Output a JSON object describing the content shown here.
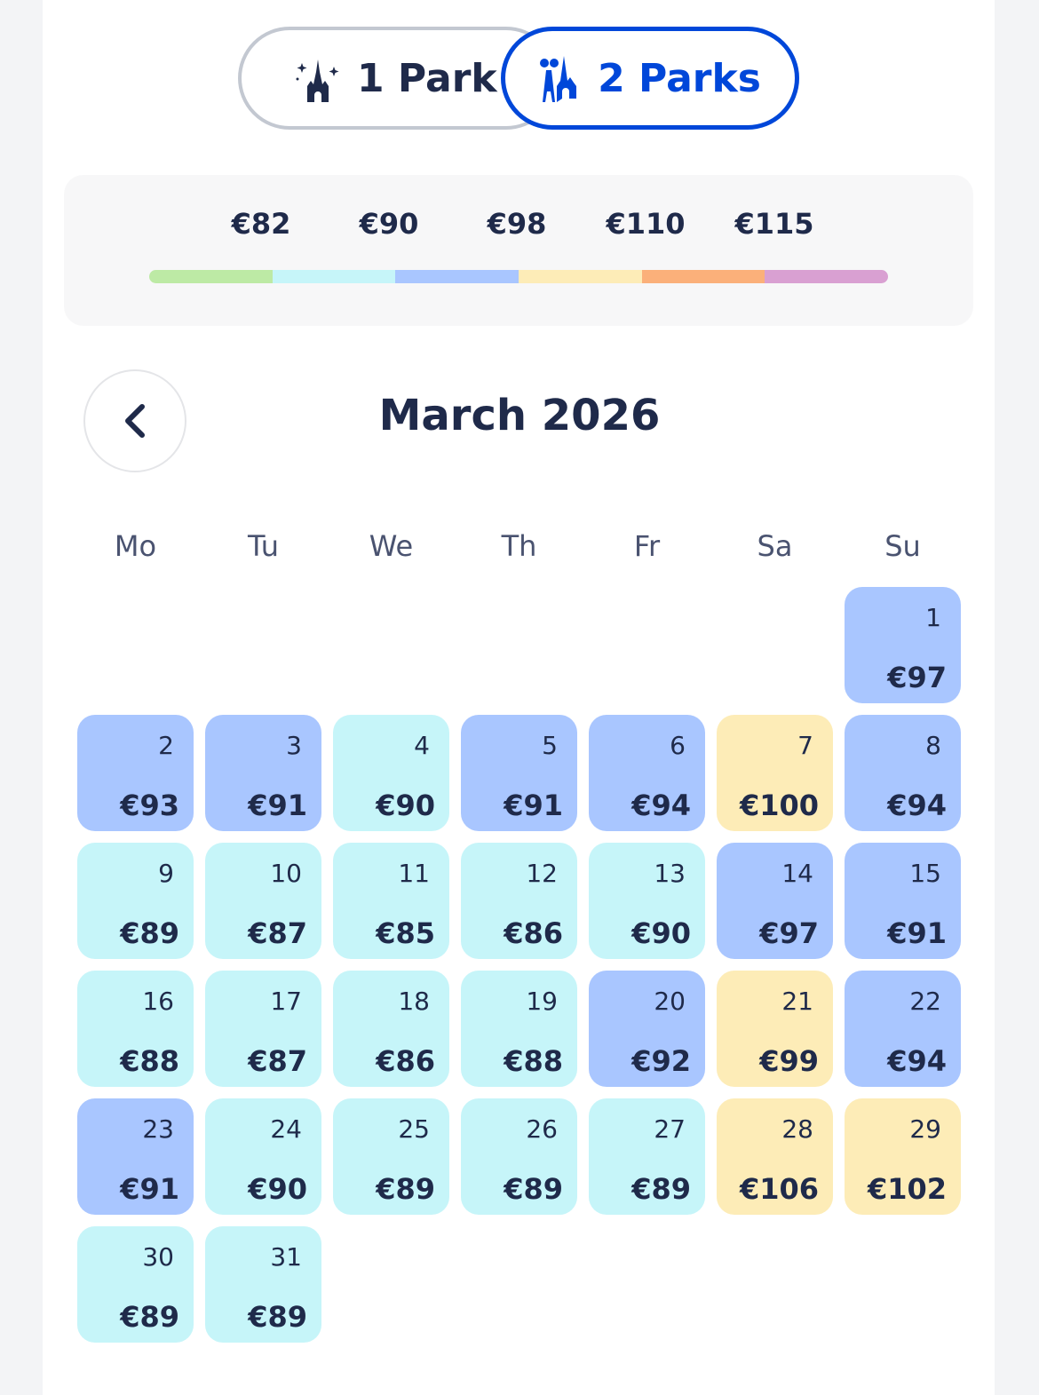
{
  "toggle": {
    "option1": {
      "label": "1 Park",
      "icon": "castle-icon"
    },
    "option2": {
      "label": "2 Parks",
      "icon": "castle-studio-icon",
      "selected": true
    }
  },
  "colors": {
    "accent": "#0047d9",
    "text": "#1f2a4a",
    "tier_green": "#bdeaa5",
    "tier_cyan": "#c6f5f9",
    "tier_blue": "#a9c6ff",
    "tier_yellow": "#fdecb7",
    "tier_orange": "#fbb07a",
    "tier_pink": "#d9a0d2"
  },
  "legend": {
    "prices": [
      "€82",
      "€90",
      "€98",
      "€110",
      "€115"
    ],
    "tiers": [
      "green",
      "cyan",
      "blue",
      "yellow",
      "orange",
      "pink"
    ]
  },
  "calendar": {
    "month": "March 2026",
    "weekdays": [
      "Mo",
      "Tu",
      "We",
      "Th",
      "Fr",
      "Sa",
      "Su"
    ],
    "first_weekday": "Su",
    "days": [
      {
        "day": "1",
        "price": "€97",
        "tier": "blue"
      },
      {
        "day": "2",
        "price": "€93",
        "tier": "blue"
      },
      {
        "day": "3",
        "price": "€91",
        "tier": "blue"
      },
      {
        "day": "4",
        "price": "€90",
        "tier": "cyan"
      },
      {
        "day": "5",
        "price": "€91",
        "tier": "blue"
      },
      {
        "day": "6",
        "price": "€94",
        "tier": "blue"
      },
      {
        "day": "7",
        "price": "€100",
        "tier": "yellow"
      },
      {
        "day": "8",
        "price": "€94",
        "tier": "blue"
      },
      {
        "day": "9",
        "price": "€89",
        "tier": "cyan"
      },
      {
        "day": "10",
        "price": "€87",
        "tier": "cyan"
      },
      {
        "day": "11",
        "price": "€85",
        "tier": "cyan"
      },
      {
        "day": "12",
        "price": "€86",
        "tier": "cyan"
      },
      {
        "day": "13",
        "price": "€90",
        "tier": "cyan"
      },
      {
        "day": "14",
        "price": "€97",
        "tier": "blue"
      },
      {
        "day": "15",
        "price": "€91",
        "tier": "blue"
      },
      {
        "day": "16",
        "price": "€88",
        "tier": "cyan"
      },
      {
        "day": "17",
        "price": "€87",
        "tier": "cyan"
      },
      {
        "day": "18",
        "price": "€86",
        "tier": "cyan"
      },
      {
        "day": "19",
        "price": "€88",
        "tier": "cyan"
      },
      {
        "day": "20",
        "price": "€92",
        "tier": "blue"
      },
      {
        "day": "21",
        "price": "€99",
        "tier": "yellow"
      },
      {
        "day": "22",
        "price": "€94",
        "tier": "blue"
      },
      {
        "day": "23",
        "price": "€91",
        "tier": "blue"
      },
      {
        "day": "24",
        "price": "€90",
        "tier": "cyan"
      },
      {
        "day": "25",
        "price": "€89",
        "tier": "cyan"
      },
      {
        "day": "26",
        "price": "€89",
        "tier": "cyan"
      },
      {
        "day": "27",
        "price": "€89",
        "tier": "cyan"
      },
      {
        "day": "28",
        "price": "€106",
        "tier": "yellow"
      },
      {
        "day": "29",
        "price": "€102",
        "tier": "yellow"
      },
      {
        "day": "30",
        "price": "€89",
        "tier": "cyan"
      },
      {
        "day": "31",
        "price": "€89",
        "tier": "cyan"
      }
    ]
  }
}
